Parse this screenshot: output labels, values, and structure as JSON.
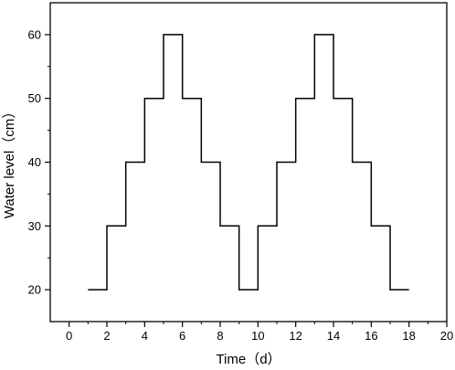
{
  "chart_data": {
    "type": "line",
    "step": true,
    "title": "",
    "xlabel": "Time（d）",
    "ylabel": "Water level（cm）",
    "xlim": [
      -1,
      20
    ],
    "ylim": [
      15,
      65
    ],
    "x_ticks": [
      0,
      2,
      4,
      6,
      8,
      10,
      12,
      14,
      16,
      18,
      20
    ],
    "y_ticks": [
      20,
      30,
      40,
      50,
      60
    ],
    "grid": false,
    "legend": "none",
    "series": [
      {
        "color": "#000000",
        "x": [
          1,
          2,
          2,
          3,
          3,
          4,
          4,
          5,
          5,
          6,
          6,
          7,
          7,
          8,
          8,
          9,
          9,
          10,
          10,
          11,
          11,
          12,
          12,
          13,
          13,
          14,
          14,
          15,
          15,
          16,
          16,
          17,
          17,
          18
        ],
        "y": [
          20,
          20,
          30,
          30,
          40,
          40,
          50,
          50,
          60,
          60,
          50,
          50,
          40,
          40,
          30,
          30,
          20,
          20,
          30,
          30,
          40,
          40,
          50,
          50,
          60,
          60,
          50,
          50,
          40,
          40,
          30,
          30,
          20,
          20
        ]
      }
    ]
  }
}
